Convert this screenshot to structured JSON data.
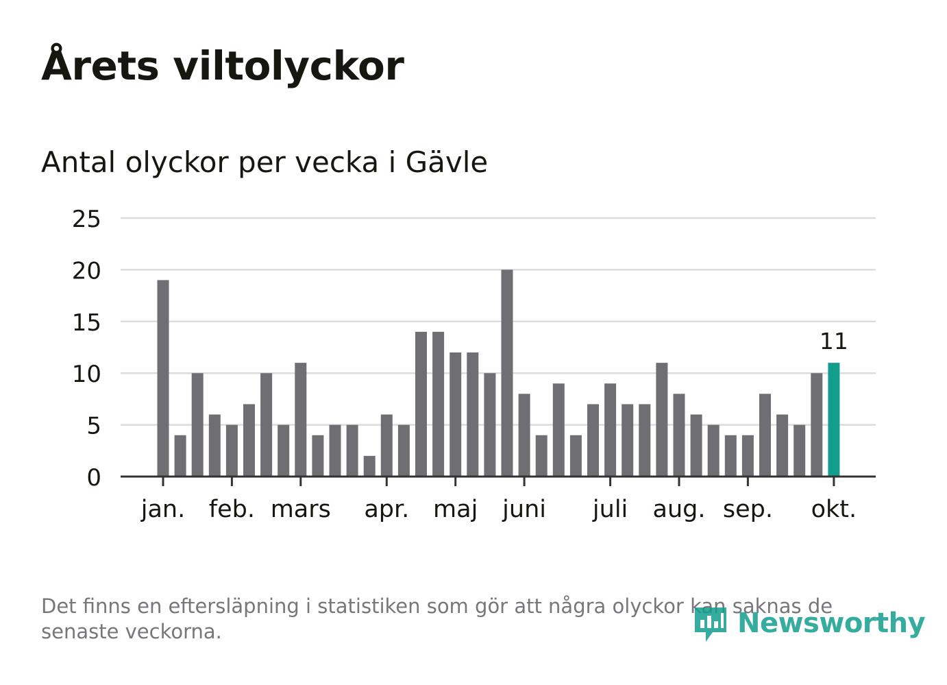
{
  "title": "Årets viltolyckor",
  "subtitle": "Antal olyckor per vecka i Gävle",
  "footnote": "Det finns en eftersläpning i statistiken som gör att några olyckor kan saknas de senaste veckorna.",
  "brand": {
    "name": "Newsworthy",
    "icon": "newsworthy-logo-icon",
    "color": "#129e8c"
  },
  "colors": {
    "bar": "#6f6e72",
    "highlight": "#129e8c",
    "grid": "#dcdcdc",
    "axis": "#333333",
    "text": "#171711"
  },
  "chart_data": {
    "type": "bar",
    "title": "Antal olyckor per vecka i Gävle",
    "xlabel": "",
    "ylabel": "",
    "ylim": [
      0,
      25
    ],
    "yticks": [
      0,
      5,
      10,
      15,
      20,
      25
    ],
    "grid": true,
    "values": [
      19,
      4,
      10,
      6,
      5,
      7,
      10,
      5,
      11,
      4,
      5,
      5,
      2,
      6,
      5,
      14,
      14,
      12,
      12,
      10,
      20,
      8,
      4,
      9,
      4,
      7,
      9,
      7,
      7,
      11,
      8,
      6,
      5,
      4,
      4,
      8,
      6,
      5,
      10,
      11
    ],
    "highlight_index": 39,
    "highlight_label": "11",
    "month_ticks": [
      {
        "label": "jan.",
        "week_index": 0
      },
      {
        "label": "feb.",
        "week_index": 4
      },
      {
        "label": "mars",
        "week_index": 8
      },
      {
        "label": "apr.",
        "week_index": 13
      },
      {
        "label": "maj",
        "week_index": 17
      },
      {
        "label": "juni",
        "week_index": 21
      },
      {
        "label": "juli",
        "week_index": 26
      },
      {
        "label": "aug.",
        "week_index": 30
      },
      {
        "label": "sep.",
        "week_index": 34
      },
      {
        "label": "okt.",
        "week_index": 39
      }
    ]
  }
}
